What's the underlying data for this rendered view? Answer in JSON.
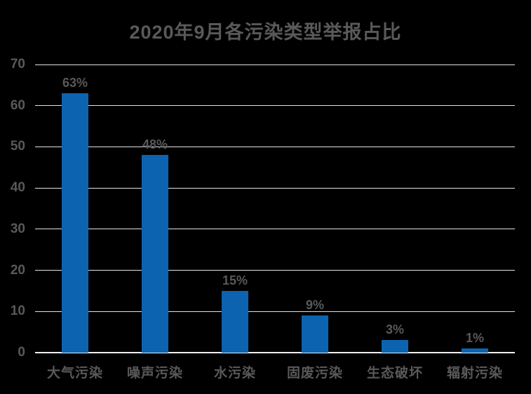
{
  "title": "2020年9月各污染类型举报占比",
  "colors": {
    "background": "#000000",
    "bar": "#0c64b0",
    "text": "#595959",
    "gridline": "#e3e3e3",
    "axis_line": "#efefef"
  },
  "chart_data": {
    "type": "bar",
    "title": "2020年9月各污染类型举报占比",
    "categories": [
      "大气污染",
      "噪声污染",
      "水污染",
      "固废污染",
      "生态破坏",
      "辐射污染"
    ],
    "values": [
      63,
      48,
      15,
      9,
      3,
      1
    ],
    "data_labels": [
      "63%",
      "48%",
      "15%",
      "9%",
      "3%",
      "1%"
    ],
    "xlabel": "",
    "ylabel": "",
    "ylim": [
      0,
      70
    ],
    "ytick_interval": 10,
    "ytick_labels": [
      "0",
      "10",
      "20",
      "30",
      "40",
      "50",
      "60",
      "70"
    ],
    "grid": "horizontal",
    "legend": "none"
  }
}
